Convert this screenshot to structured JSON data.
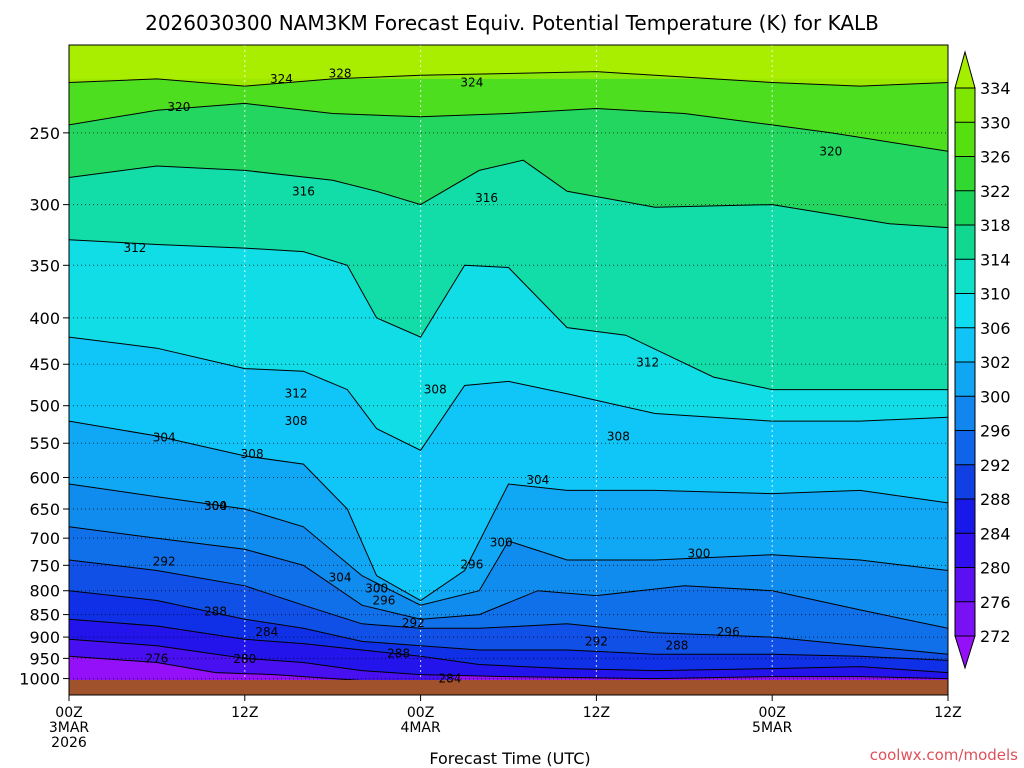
{
  "title": "2026030300 NAM3KM Forecast Equiv. Potential Temperature (K) for KALB",
  "credit": "coolwx.com/models",
  "credit_color": "#e0505a",
  "ground_color": "#a0522d",
  "chart_data": {
    "type": "heatmap",
    "title": "2026030300 NAM3KM Forecast Equiv. Potential Temperature (K) for KALB",
    "xlabel": "Forecast Time (UTC)",
    "ylabel": "",
    "x_range_hours": [
      0,
      48
    ],
    "x_ticks": [
      {
        "hour": 0,
        "lines": [
          "00Z",
          "3MAR",
          "2026"
        ]
      },
      {
        "hour": 12,
        "lines": [
          "12Z"
        ]
      },
      {
        "hour": 24,
        "lines": [
          "00Z",
          "4MAR"
        ]
      },
      {
        "hour": 36,
        "lines": [
          "12Z"
        ]
      },
      {
        "hour": 48,
        "lines": [
          "00Z",
          "5MAR"
        ]
      },
      {
        "hour": 60,
        "lines": [
          "12Z"
        ]
      }
    ],
    "x_range_data": [
      0,
      60
    ],
    "y_scale": "log-pressure, inverted",
    "y_range_hpa": [
      1050,
      200
    ],
    "y_ticks": [
      250,
      300,
      350,
      400,
      450,
      500,
      550,
      600,
      650,
      700,
      750,
      800,
      850,
      900,
      950,
      1000
    ],
    "grid": true,
    "colorbar": {
      "labels": [
        334,
        330,
        326,
        322,
        318,
        314,
        310,
        306,
        302,
        300,
        296,
        292,
        288,
        284,
        280,
        276,
        272
      ],
      "colors": [
        "#a6ee00",
        "#7ee600",
        "#56e010",
        "#30d830",
        "#18d25a",
        "#10d890",
        "#10e0c8",
        "#10dcf0",
        "#10c4f8",
        "#10a6f4",
        "#1086ee",
        "#1064ea",
        "#1040e4",
        "#1818e8",
        "#3010ee",
        "#5a10f0",
        "#7a10f4",
        "#9410f8"
      ],
      "placement": "right"
    },
    "series": [
      {
        "label": "324",
        "points": [
          [
            0,
            220
          ],
          [
            6,
            218
          ],
          [
            12,
            222
          ],
          [
            18,
            218
          ],
          [
            24,
            216
          ],
          [
            30,
            215
          ],
          [
            36,
            214
          ],
          [
            40,
            216
          ],
          [
            48,
            220
          ],
          [
            54,
            222
          ],
          [
            60,
            220
          ]
        ]
      },
      {
        "label": "320",
        "points": [
          [
            0,
            245
          ],
          [
            6,
            236
          ],
          [
            12,
            232
          ],
          [
            18,
            238
          ],
          [
            24,
            240
          ],
          [
            30,
            238
          ],
          [
            36,
            235
          ],
          [
            42,
            238
          ],
          [
            48,
            245
          ],
          [
            52,
            250
          ],
          [
            60,
            262
          ]
        ]
      },
      {
        "label": "316",
        "points": [
          [
            0,
            280
          ],
          [
            6,
            272
          ],
          [
            12,
            275
          ],
          [
            18,
            282
          ],
          [
            21,
            290
          ],
          [
            24,
            300
          ],
          [
            28,
            275
          ],
          [
            31,
            268
          ],
          [
            34,
            290
          ],
          [
            40,
            302
          ],
          [
            48,
            300
          ],
          [
            56,
            315
          ],
          [
            60,
            318
          ]
        ]
      },
      {
        "label": "312",
        "points": [
          [
            0,
            328
          ],
          [
            6,
            332
          ],
          [
            12,
            335
          ],
          [
            16,
            338
          ],
          [
            19,
            350
          ],
          [
            21,
            400
          ],
          [
            24,
            420
          ],
          [
            27,
            350
          ],
          [
            30,
            352
          ],
          [
            34,
            410
          ],
          [
            38,
            418
          ],
          [
            44,
            465
          ],
          [
            48,
            480
          ],
          [
            54,
            480
          ],
          [
            60,
            480
          ]
        ]
      },
      {
        "label": "308",
        "points": [
          [
            0,
            420
          ],
          [
            6,
            432
          ],
          [
            12,
            455
          ],
          [
            16,
            458
          ],
          [
            19,
            480
          ],
          [
            21,
            530
          ],
          [
            24,
            560
          ],
          [
            27,
            475
          ],
          [
            30,
            470
          ],
          [
            34,
            485
          ],
          [
            40,
            510
          ],
          [
            48,
            520
          ],
          [
            54,
            520
          ],
          [
            60,
            515
          ]
        ]
      },
      {
        "label": "304",
        "points": [
          [
            0,
            520
          ],
          [
            6,
            540
          ],
          [
            12,
            568
          ],
          [
            16,
            580
          ],
          [
            19,
            650
          ],
          [
            21,
            770
          ],
          [
            24,
            820
          ],
          [
            27,
            760
          ],
          [
            30,
            610
          ],
          [
            34,
            620
          ],
          [
            40,
            620
          ],
          [
            48,
            625
          ],
          [
            54,
            620
          ],
          [
            60,
            640
          ]
        ]
      },
      {
        "label": "300",
        "points": [
          [
            0,
            610
          ],
          [
            6,
            630
          ],
          [
            12,
            650
          ],
          [
            16,
            680
          ],
          [
            20,
            770
          ],
          [
            24,
            830
          ],
          [
            28,
            800
          ],
          [
            30,
            705
          ],
          [
            34,
            740
          ],
          [
            40,
            740
          ],
          [
            48,
            730
          ],
          [
            54,
            740
          ],
          [
            60,
            760
          ]
        ]
      },
      {
        "label": "296",
        "points": [
          [
            0,
            680
          ],
          [
            6,
            700
          ],
          [
            12,
            720
          ],
          [
            16,
            750
          ],
          [
            20,
            830
          ],
          [
            24,
            860
          ],
          [
            28,
            850
          ],
          [
            32,
            800
          ],
          [
            36,
            810
          ],
          [
            42,
            790
          ],
          [
            48,
            800
          ],
          [
            54,
            840
          ],
          [
            60,
            880
          ]
        ]
      },
      {
        "label": "292",
        "points": [
          [
            0,
            740
          ],
          [
            6,
            760
          ],
          [
            12,
            790
          ],
          [
            16,
            830
          ],
          [
            20,
            870
          ],
          [
            24,
            880
          ],
          [
            28,
            880
          ],
          [
            34,
            870
          ],
          [
            40,
            890
          ],
          [
            48,
            900
          ],
          [
            54,
            920
          ],
          [
            60,
            940
          ]
        ]
      },
      {
        "label": "288",
        "points": [
          [
            0,
            800
          ],
          [
            6,
            820
          ],
          [
            12,
            860
          ],
          [
            16,
            880
          ],
          [
            20,
            910
          ],
          [
            24,
            920
          ],
          [
            28,
            930
          ],
          [
            34,
            930
          ],
          [
            40,
            940
          ],
          [
            48,
            940
          ],
          [
            54,
            945
          ],
          [
            60,
            955
          ]
        ]
      },
      {
        "label": "284",
        "points": [
          [
            0,
            860
          ],
          [
            6,
            875
          ],
          [
            12,
            905
          ],
          [
            16,
            915
          ],
          [
            20,
            930
          ],
          [
            24,
            945
          ],
          [
            28,
            965
          ],
          [
            34,
            975
          ],
          [
            40,
            980
          ],
          [
            48,
            975
          ],
          [
            54,
            970
          ],
          [
            60,
            985
          ]
        ]
      },
      {
        "label": "280",
        "points": [
          [
            0,
            905
          ],
          [
            6,
            920
          ],
          [
            12,
            950
          ],
          [
            16,
            960
          ],
          [
            20,
            980
          ],
          [
            24,
            990
          ],
          [
            30,
            995
          ],
          [
            40,
            1000
          ],
          [
            48,
            995
          ],
          [
            54,
            995
          ],
          [
            60,
            1000
          ]
        ]
      },
      {
        "label": "276",
        "points": [
          [
            0,
            945
          ],
          [
            6,
            960
          ],
          [
            10,
            985
          ],
          [
            14,
            990
          ],
          [
            18,
            1000
          ],
          [
            22,
            1010
          ],
          [
            26,
            1012
          ]
        ]
      }
    ],
    "contour_labels": [
      {
        "text": "324",
        "hour": 14.5,
        "hpa": 218
      },
      {
        "text": "328",
        "hour": 18.5,
        "hpa": 215
      },
      {
        "text": "324",
        "hour": 27.5,
        "hpa": 220
      },
      {
        "text": "320",
        "hour": 7.5,
        "hpa": 234
      },
      {
        "text": "320",
        "hour": 52,
        "hpa": 262
      },
      {
        "text": "316",
        "hour": 16,
        "hpa": 290
      },
      {
        "text": "316",
        "hour": 28.5,
        "hpa": 295
      },
      {
        "text": "312",
        "hour": 4.5,
        "hpa": 335
      },
      {
        "text": "312",
        "hour": 15.5,
        "hpa": 485
      },
      {
        "text": "312",
        "hour": 39.5,
        "hpa": 448
      },
      {
        "text": "308",
        "hour": 25,
        "hpa": 480
      },
      {
        "text": "308",
        "hour": 15.5,
        "hpa": 520
      },
      {
        "text": "308",
        "hour": 12.5,
        "hpa": 565
      },
      {
        "text": "308",
        "hour": 37.5,
        "hpa": 541
      },
      {
        "text": "304",
        "hour": 6.5,
        "hpa": 542
      },
      {
        "text": "304",
        "hour": 32,
        "hpa": 604
      },
      {
        "text": "304",
        "hour": 18.5,
        "hpa": 774
      },
      {
        "text": "304",
        "hour": 10,
        "hpa": 645
      },
      {
        "text": "300",
        "hour": 10,
        "hpa": 645
      },
      {
        "text": "300",
        "hour": 29.5,
        "hpa": 708
      },
      {
        "text": "300",
        "hour": 43,
        "hpa": 728
      },
      {
        "text": "300",
        "hour": 21,
        "hpa": 795
      },
      {
        "text": "296",
        "hour": 21.5,
        "hpa": 820
      },
      {
        "text": "296",
        "hour": 27.5,
        "hpa": 748
      },
      {
        "text": "296",
        "hour": 45,
        "hpa": 888
      },
      {
        "text": "292",
        "hour": 6.5,
        "hpa": 743
      },
      {
        "text": "292",
        "hour": 23.5,
        "hpa": 868
      },
      {
        "text": "292",
        "hour": 36,
        "hpa": 910
      },
      {
        "text": "288",
        "hour": 10,
        "hpa": 843
      },
      {
        "text": "288",
        "hour": 22.5,
        "hpa": 938
      },
      {
        "text": "288",
        "hour": 41.5,
        "hpa": 920
      },
      {
        "text": "284",
        "hour": 13.5,
        "hpa": 888
      },
      {
        "text": "284",
        "hour": 26,
        "hpa": 1000
      },
      {
        "text": "280",
        "hour": 12,
        "hpa": 951
      },
      {
        "text": "276",
        "hour": 6,
        "hpa": 950
      }
    ]
  }
}
